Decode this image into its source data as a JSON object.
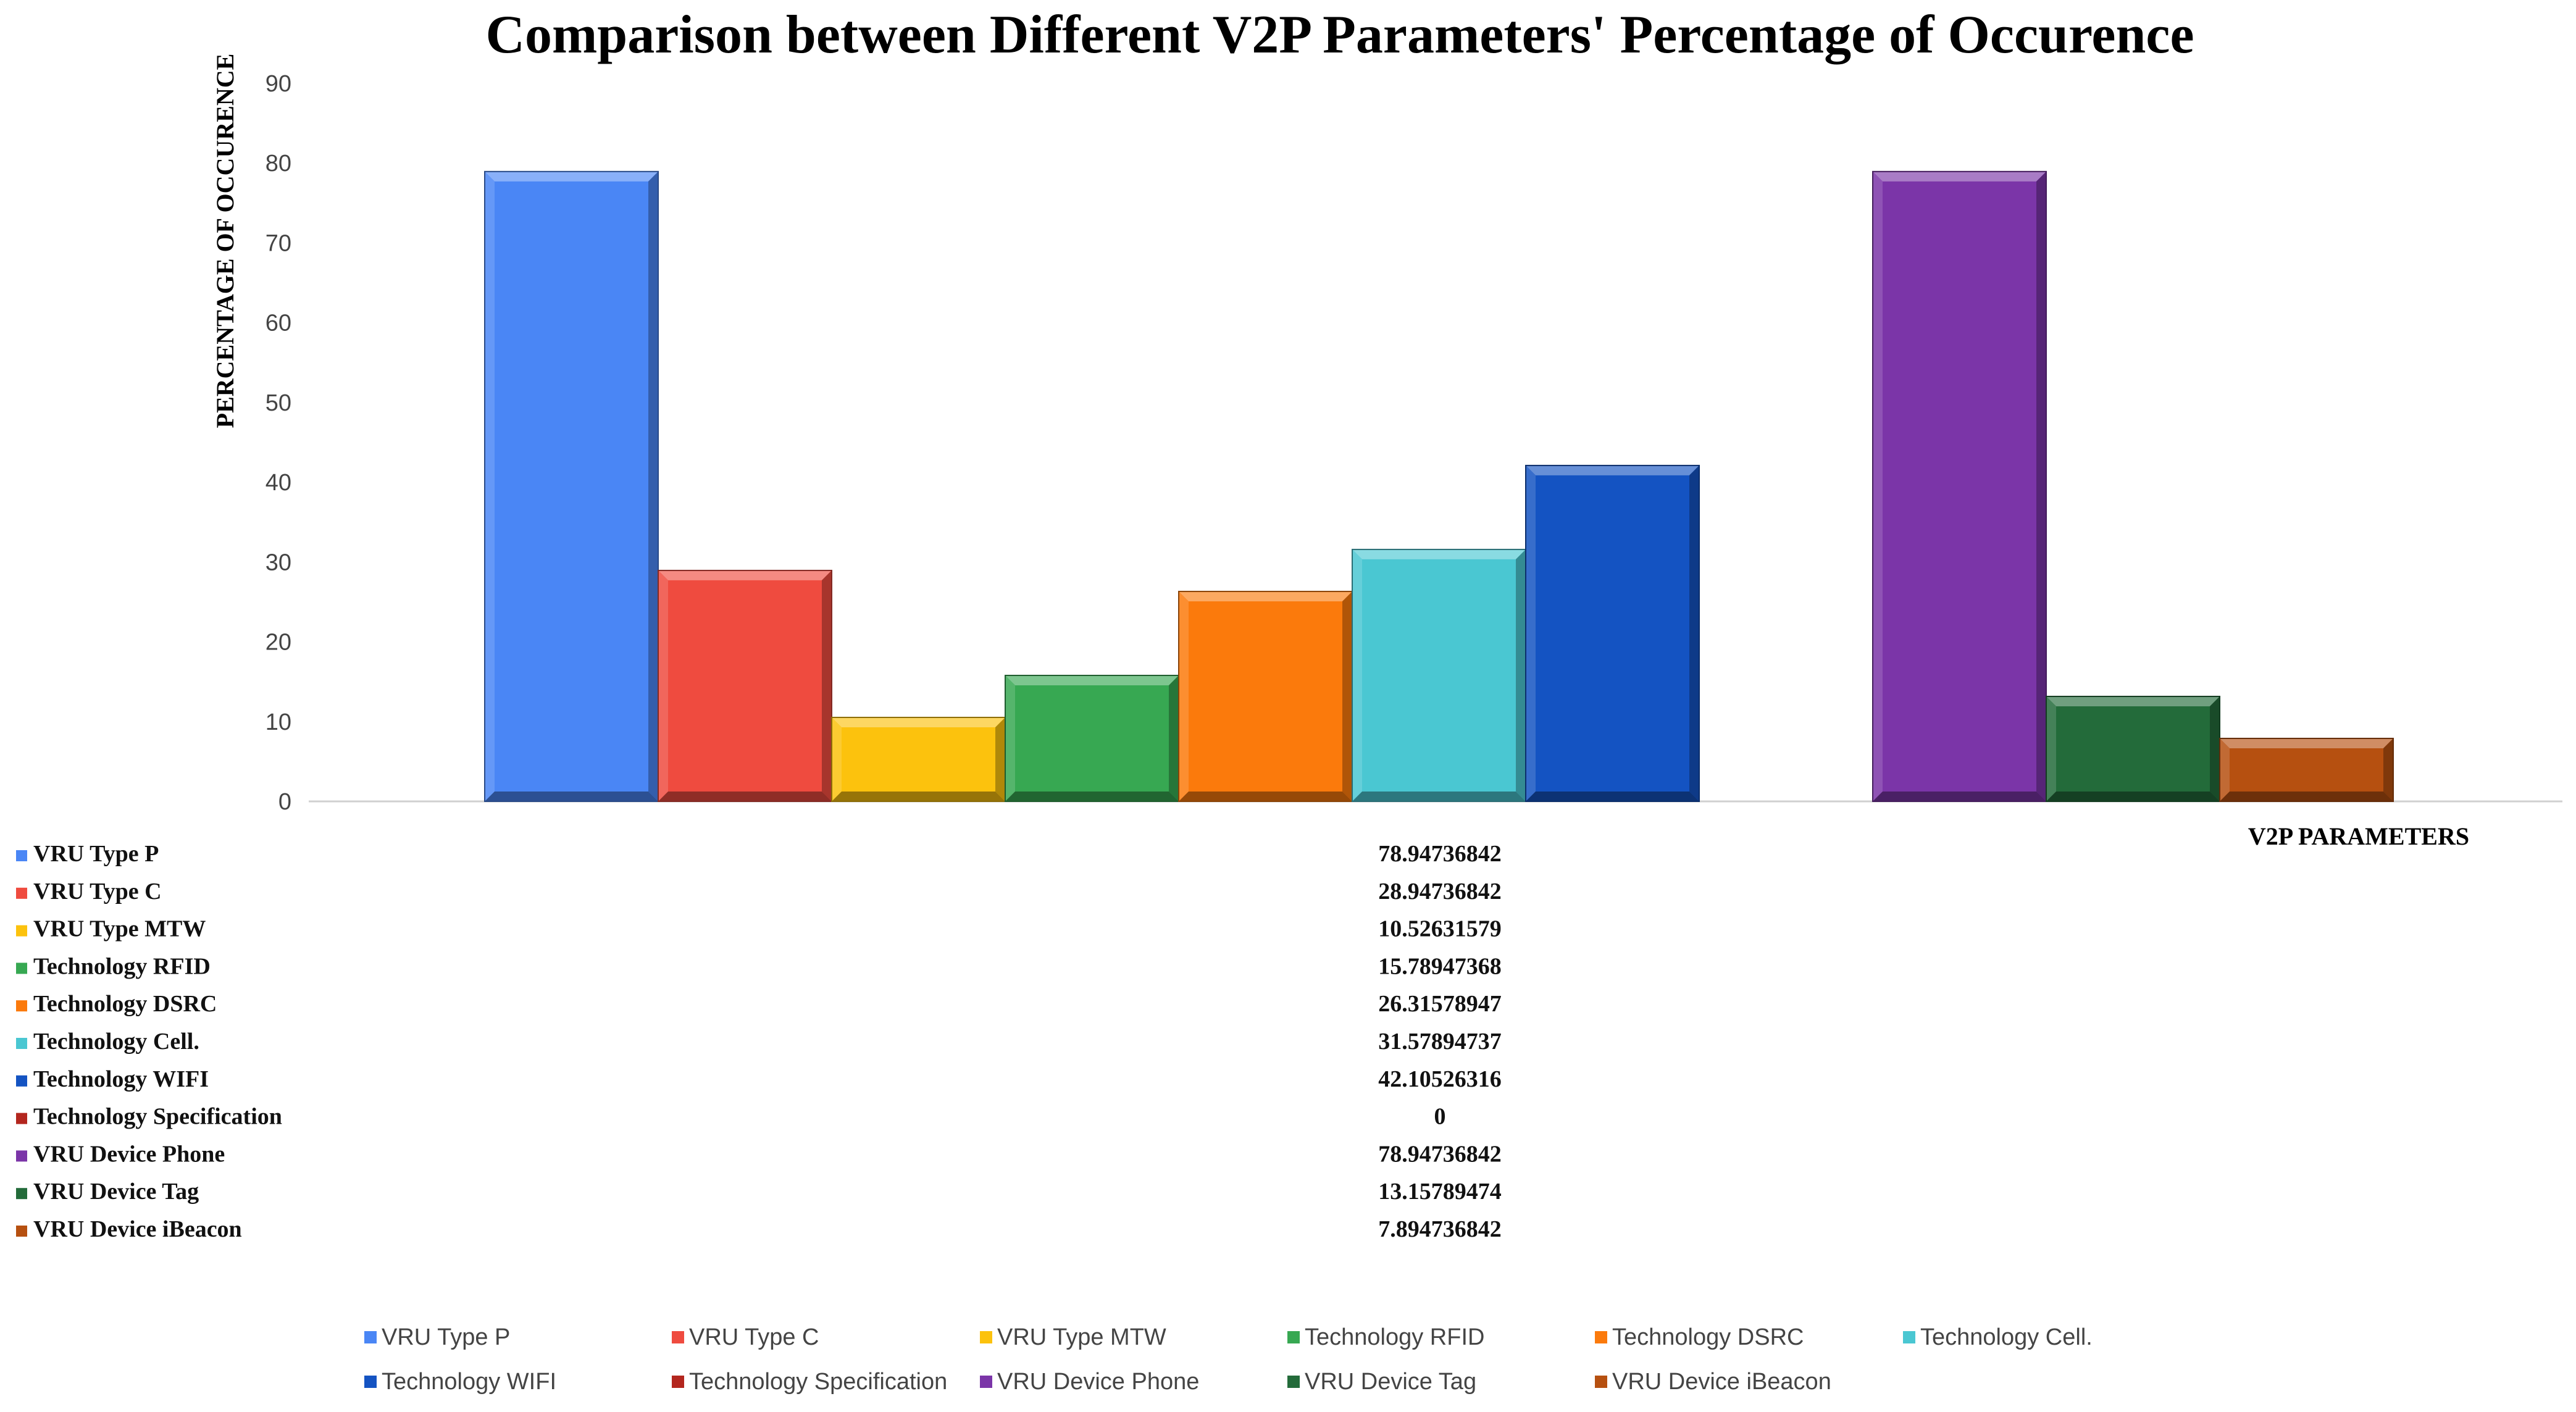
{
  "chart_data": {
    "type": "bar",
    "title": "Comparison between Different V2P Parameters' Percentage of Occurence",
    "ylabel": "PERCENTAGE  OF OCCURENCE",
    "xlabel": "V2P PARAMETERS",
    "ylim": [
      0,
      90
    ],
    "yticks": [
      "0",
      "10",
      "20",
      "30",
      "40",
      "50",
      "60",
      "70",
      "80",
      "90"
    ],
    "grid": false,
    "legend_position": "bottom",
    "series": [
      {
        "name": "VRU Type P",
        "value": 78.94736842,
        "label": "78.94736842",
        "color": "#4a86f5"
      },
      {
        "name": "VRU Type C",
        "value": 28.94736842,
        "label": "28.94736842",
        "color": "#ef4b3f"
      },
      {
        "name": "VRU Type MTW",
        "value": 10.52631579,
        "label": "10.52631579",
        "color": "#fcc20d"
      },
      {
        "name": "Technology RFID",
        "value": 15.78947368,
        "label": "15.78947368",
        "color": "#37a852"
      },
      {
        "name": "Technology DSRC",
        "value": 26.31578947,
        "label": "26.31578947",
        "color": "#fb7a0c"
      },
      {
        "name": "Technology Cell.",
        "value": 31.57894737,
        "label": "31.57894737",
        "color": "#4ac7d2"
      },
      {
        "name": "Technology WIFI",
        "value": 42.10526316,
        "label": "42.10526316",
        "color": "#1453c2"
      },
      {
        "name": "Technology Specification",
        "value": 0,
        "label": "0",
        "color": "#b3261e"
      },
      {
        "name": "VRU Device Phone",
        "value": 78.94736842,
        "label": "78.94736842",
        "color": "#7b35a8"
      },
      {
        "name": "VRU Device Tag",
        "value": 13.15789474,
        "label": "13.15789474",
        "color": "#236b3a"
      },
      {
        "name": "VRU Device iBeacon",
        "value": 7.894736842,
        "label": "7.894736842",
        "color": "#b65010"
      }
    ]
  }
}
